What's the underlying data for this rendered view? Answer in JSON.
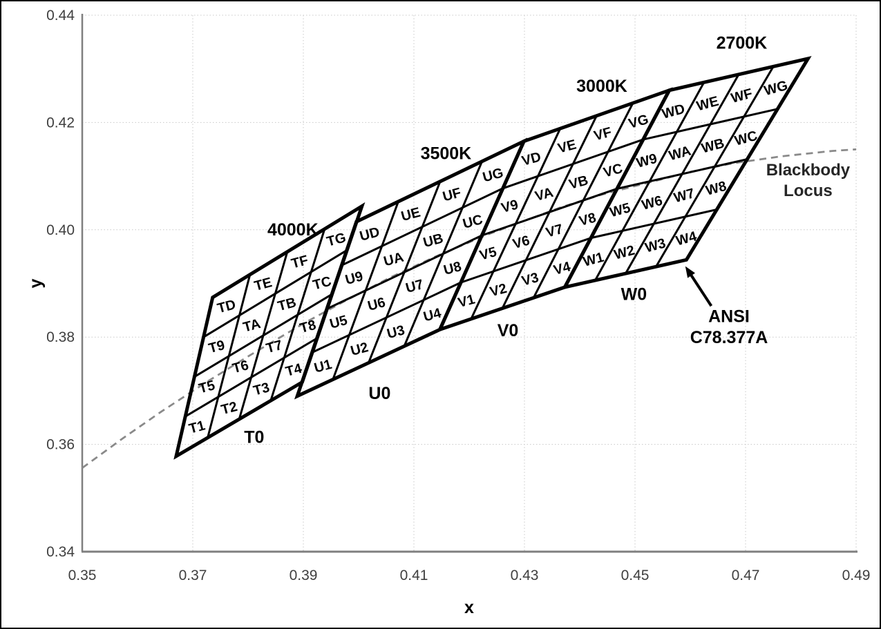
{
  "chart_data": {
    "type": "quadrangle-bin-map",
    "title": "",
    "xlabel": "x",
    "ylabel": "y",
    "xlim": [
      0.35,
      0.49
    ],
    "ylim": [
      0.34,
      0.44
    ],
    "xticks": [
      "0.35",
      "0.37",
      "0.39",
      "0.41",
      "0.43",
      "0.45",
      "0.47",
      "0.49"
    ],
    "yticks": [
      "0.34",
      "0.36",
      "0.38",
      "0.40",
      "0.42",
      "0.44"
    ],
    "grid": "dotted",
    "colors": {
      "grid": "#c8c8c8",
      "axis": "#7f7f7f",
      "bin_line": "#000000",
      "locus": "#8a8a8a",
      "tick_text": "#3f3f3f",
      "locus_label_text": "#262626"
    },
    "blackbody_locus": {
      "label_lines": [
        "Blackbody",
        "Locus"
      ],
      "label_pos": [
        0.4813,
        0.4112
      ],
      "label_line_gap_y": 0.0039,
      "points": [
        [
          0.35,
          0.3556
        ],
        [
          0.3573,
          0.3611
        ],
        [
          0.3643,
          0.3661
        ],
        [
          0.372,
          0.3713
        ],
        [
          0.3805,
          0.3767
        ],
        [
          0.3898,
          0.3824
        ],
        [
          0.3973,
          0.3866
        ],
        [
          0.4055,
          0.391
        ],
        [
          0.4139,
          0.395
        ],
        [
          0.4233,
          0.3991
        ],
        [
          0.4366,
          0.4042
        ],
        [
          0.4438,
          0.4065
        ],
        [
          0.46,
          0.4108
        ],
        [
          0.4677,
          0.4124
        ],
        [
          0.4765,
          0.4137
        ],
        [
          0.4857,
          0.4147
        ],
        [
          0.49,
          0.415
        ]
      ]
    },
    "bins": [
      {
        "name": "T0",
        "cct_label": "4000K",
        "cct_label_pos": [
          0.3881,
          0.4001
        ],
        "name_pos": [
          0.3811,
          0.3614
        ],
        "corners": {
          "bl": [
            0.367,
            0.3578
          ],
          "br": [
            0.3898,
            0.3716
          ],
          "tl": [
            0.3736,
            0.3874
          ],
          "tr": [
            0.4006,
            0.4044
          ]
        },
        "cell_labels": [
          [
            "T1",
            "T2",
            "T3",
            "T4"
          ],
          [
            "T5",
            "T6",
            "T7",
            "T8"
          ],
          [
            "T9",
            "TA",
            "TB",
            "TC"
          ],
          [
            "TD",
            "TE",
            "TF",
            "TG"
          ]
        ]
      },
      {
        "name": "U0",
        "cct_label": "3500K",
        "cct_label_pos": [
          0.4158,
          0.4143
        ],
        "name_pos": [
          0.4038,
          0.3696
        ],
        "corners": {
          "bl": [
            0.3889,
            0.369
          ],
          "br": [
            0.4147,
            0.3814
          ],
          "tl": [
            0.3996,
            0.4015
          ],
          "tr": [
            0.4299,
            0.4165
          ]
        },
        "cell_labels": [
          [
            "U1",
            "U2",
            "U3",
            "U4"
          ],
          [
            "U5",
            "U6",
            "U7",
            "U8"
          ],
          [
            "U9",
            "UA",
            "UB",
            "UC"
          ],
          [
            "UD",
            "UE",
            "UF",
            "UG"
          ]
        ]
      },
      {
        "name": "V0",
        "cct_label": "3000K",
        "cct_label_pos": [
          0.444,
          0.4269
        ],
        "name_pos": [
          0.427,
          0.3813
        ],
        "corners": {
          "bl": [
            0.4147,
            0.3814
          ],
          "br": [
            0.4373,
            0.3893
          ],
          "tl": [
            0.4299,
            0.4165
          ],
          "tr": [
            0.4562,
            0.426
          ]
        },
        "cell_labels": [
          [
            "V1",
            "V2",
            "V3",
            "V4"
          ],
          [
            "V5",
            "V6",
            "V7",
            "V8"
          ],
          [
            "V9",
            "VA",
            "VB",
            "VC"
          ],
          [
            "VD",
            "VE",
            "VF",
            "VG"
          ]
        ]
      },
      {
        "name": "W0",
        "cct_label": "2700K",
        "cct_label_pos": [
          0.4693,
          0.4349
        ],
        "name_pos": [
          0.4498,
          0.3881
        ],
        "corners": {
          "bl": [
            0.4373,
            0.3893
          ],
          "br": [
            0.4593,
            0.3944
          ],
          "tl": [
            0.4562,
            0.426
          ],
          "tr": [
            0.4813,
            0.4319
          ]
        },
        "cell_labels": [
          [
            "W1",
            "W2",
            "W3",
            "W4"
          ],
          [
            "W5",
            "W6",
            "W7",
            "W8"
          ],
          [
            "W9",
            "WA",
            "WB",
            "WC"
          ],
          [
            "WD",
            "WE",
            "WF",
            "WG"
          ]
        ]
      }
    ],
    "annotation": {
      "label_lines": [
        "ANSI",
        "C78.377A"
      ],
      "pos": [
        0.467,
        0.3838
      ],
      "label_line_gap_y": 0.0039,
      "arrow_from": [
        0.4638,
        0.3858
      ],
      "arrow_to": [
        0.4591,
        0.3932
      ]
    }
  }
}
